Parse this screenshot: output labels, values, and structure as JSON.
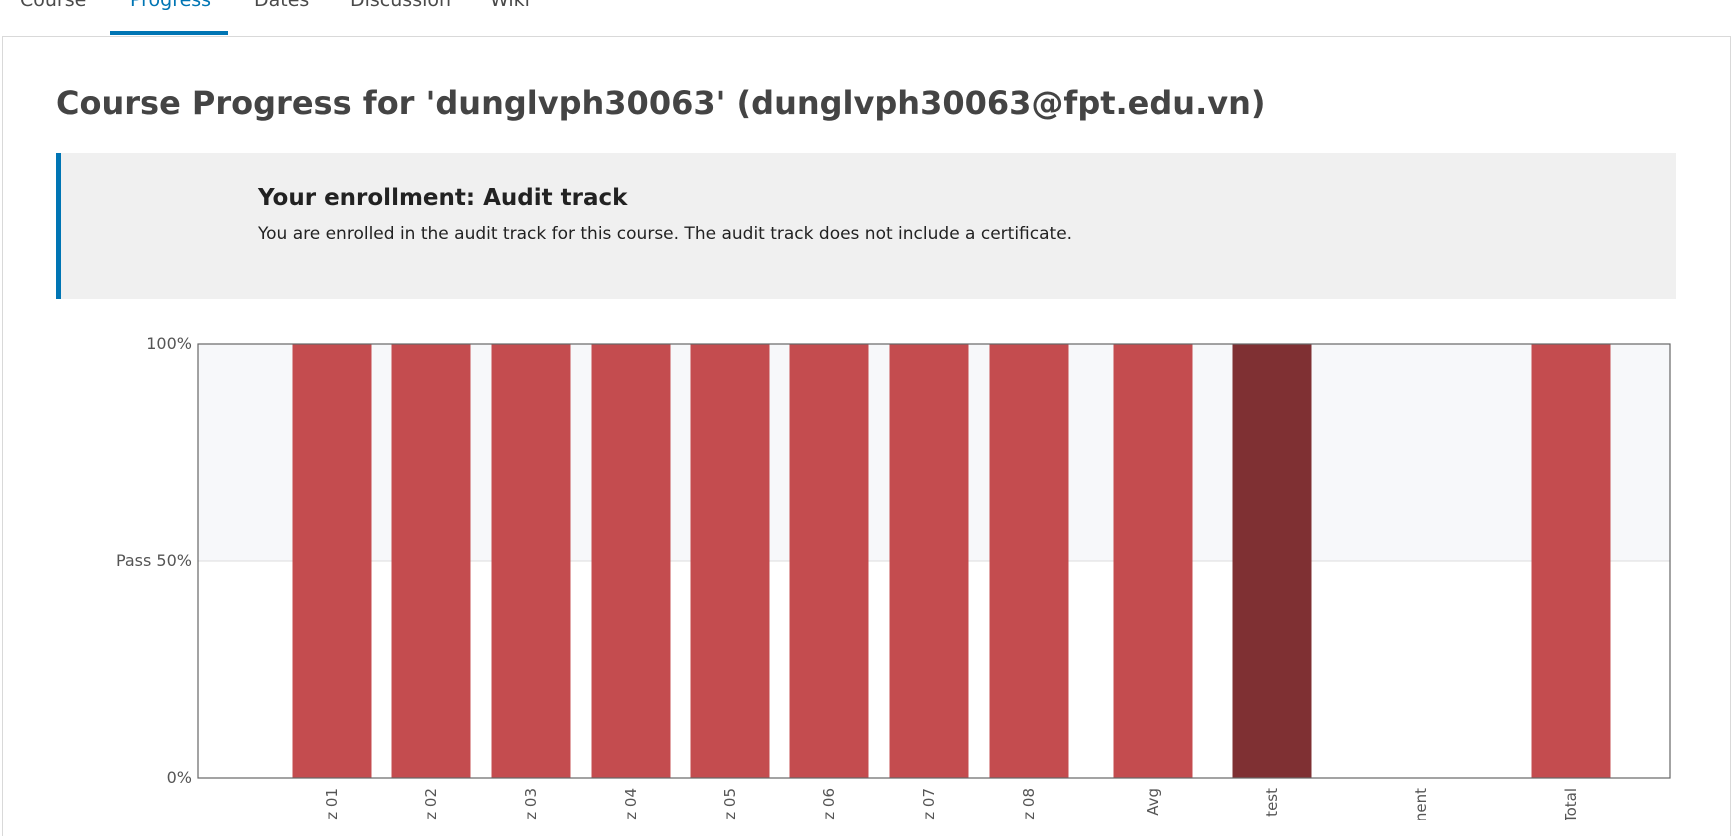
{
  "tabs": [
    {
      "label": "Course",
      "active": false
    },
    {
      "label": "Progress",
      "active": true
    },
    {
      "label": "Dates",
      "active": false
    },
    {
      "label": "Discussion",
      "active": false
    },
    {
      "label": "Wiki",
      "active": false
    }
  ],
  "page": {
    "title": "Course Progress for 'dunglvph30063' (dunglvph30063@fpt.edu.vn)"
  },
  "enrollment": {
    "title": "Your enrollment: Audit track",
    "description": "You are enrolled in the audit track for this course. The audit track does not include a certificate."
  },
  "colors": {
    "accent": "#0075b4",
    "bar": "#c44c4f",
    "bar_dark": "#7f3033",
    "pass_zone": "#f7f8fa"
  },
  "chart_data": {
    "type": "bar",
    "categories": [
      "z 01",
      "z 02",
      "z 03",
      "z 04",
      "z 05",
      "z 06",
      "z 07",
      "z 08",
      "Avg",
      "test",
      "nent",
      "Total"
    ],
    "values": [
      100,
      100,
      100,
      100,
      100,
      100,
      100,
      100,
      100,
      100,
      0,
      100
    ],
    "highlight": [
      false,
      false,
      false,
      false,
      false,
      false,
      false,
      false,
      false,
      true,
      false,
      false
    ],
    "ylim": [
      0,
      100
    ],
    "yticks": [
      {
        "value": 0,
        "label": "0%"
      },
      {
        "value": 50,
        "label": "Pass 50%"
      },
      {
        "value": 100,
        "label": "100%"
      }
    ],
    "pass_threshold": 50,
    "grid": true
  }
}
